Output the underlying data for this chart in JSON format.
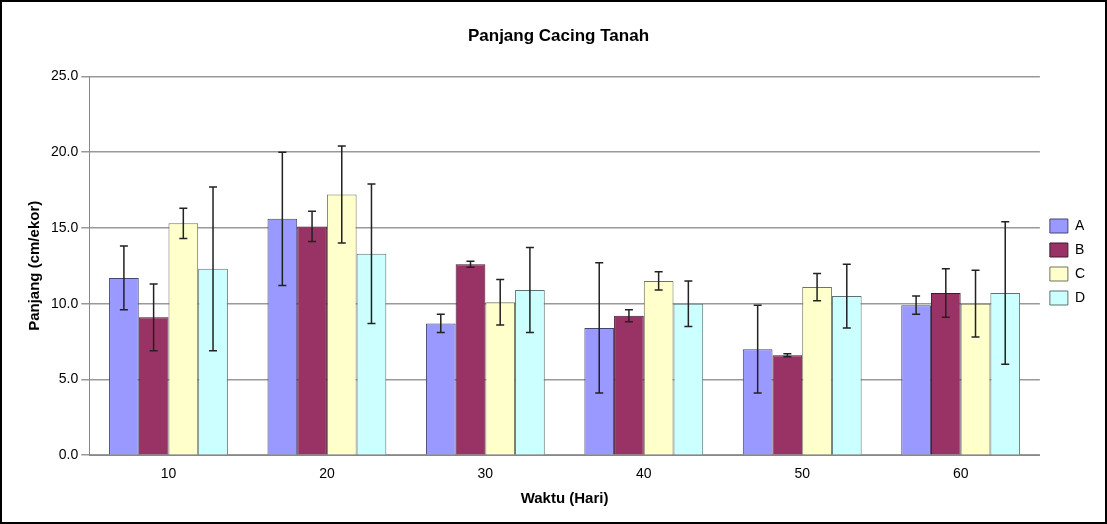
{
  "chart_data": {
    "type": "bar",
    "title": "Panjang Cacing Tanah",
    "xlabel": "Waktu (Hari)",
    "ylabel": "Panjang (cm/ekor)",
    "categories": [
      "10",
      "20",
      "30",
      "40",
      "50",
      "60"
    ],
    "series": [
      {
        "name": "A",
        "color": "#9999ff",
        "values": [
          11.7,
          15.6,
          8.7,
          8.4,
          7.0,
          9.9
        ],
        "errors": [
          2.1,
          4.4,
          0.6,
          4.3,
          2.9,
          0.6
        ]
      },
      {
        "name": "B",
        "color": "#993366",
        "values": [
          9.1,
          15.1,
          12.6,
          9.2,
          6.6,
          10.7
        ],
        "errors": [
          2.2,
          1.0,
          0.2,
          0.4,
          0.1,
          1.6
        ]
      },
      {
        "name": "C",
        "color": "#ffffcc",
        "values": [
          15.3,
          17.2,
          10.1,
          11.5,
          11.1,
          10.0
        ],
        "errors": [
          1.0,
          3.2,
          1.5,
          0.6,
          0.9,
          2.2
        ]
      },
      {
        "name": "D",
        "color": "#ccffff",
        "values": [
          12.3,
          13.3,
          10.9,
          10.0,
          10.5,
          10.7
        ],
        "errors": [
          5.4,
          4.6,
          2.8,
          1.5,
          2.1,
          4.7
        ]
      }
    ],
    "ylim": [
      0,
      25
    ],
    "yticks": [
      {
        "value": 0,
        "label": "0.0"
      },
      {
        "value": 5,
        "label": "5.0"
      },
      {
        "value": 10,
        "label": "10.0"
      },
      {
        "value": 15,
        "label": "15.0"
      },
      {
        "value": 20,
        "label": "20.0"
      },
      {
        "value": 25,
        "label": "25.0"
      }
    ],
    "grid": "y",
    "legend": "right"
  }
}
